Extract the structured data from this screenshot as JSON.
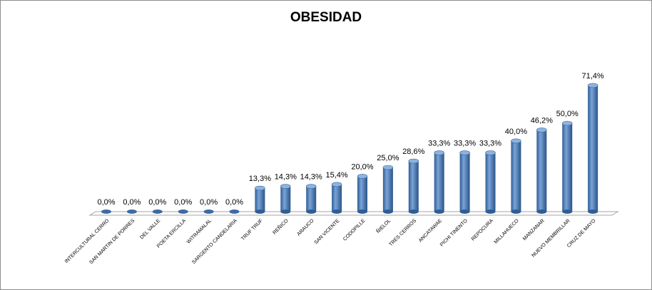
{
  "chart_data": {
    "type": "bar",
    "title": "OBESIDAD",
    "xlabel": "",
    "ylabel": "",
    "ylim": [
      0,
      80
    ],
    "grid": false,
    "legend": "none",
    "bar_color": "#4a7ebb",
    "categories": [
      "INTERCULTURAL CERRO",
      "SAN MARTIN DE PORRES",
      "DEL VALLE",
      "POETA ERCILLA",
      "WITRAMALAL",
      "SARGENTO CANDELARIA",
      "TRUF TRUF",
      "REÑICO",
      "ARAUCO",
      "SAN VICENTE",
      "CODOPILLE",
      "ÑIELOL",
      "TRES CERROS",
      "ANCATAWAE",
      "PICHI TINENTO",
      "REPOCURA",
      "MILLAHUECO",
      "MANZANAR",
      "NUEVO MEMBRILLAR",
      "CRUZ DE MAYO"
    ],
    "values": [
      0,
      0,
      0,
      0,
      0,
      0,
      13.3,
      14.3,
      14.3,
      15.4,
      20.0,
      25.0,
      28.6,
      33.3,
      33.3,
      33.3,
      40.0,
      46.2,
      50.0,
      71.4
    ],
    "data_labels": [
      "0,0%",
      "0,0%",
      "0,0%",
      "0,0%",
      "0,0%",
      "0,0%",
      "13,3%",
      "14,3%",
      "14,3%",
      "15,4%",
      "20,0%",
      "25,0%",
      "28,6%",
      "33,3%",
      "33,3%",
      "33,3%",
      "40,0%",
      "46,2%",
      "50,0%",
      "71,4%"
    ]
  }
}
